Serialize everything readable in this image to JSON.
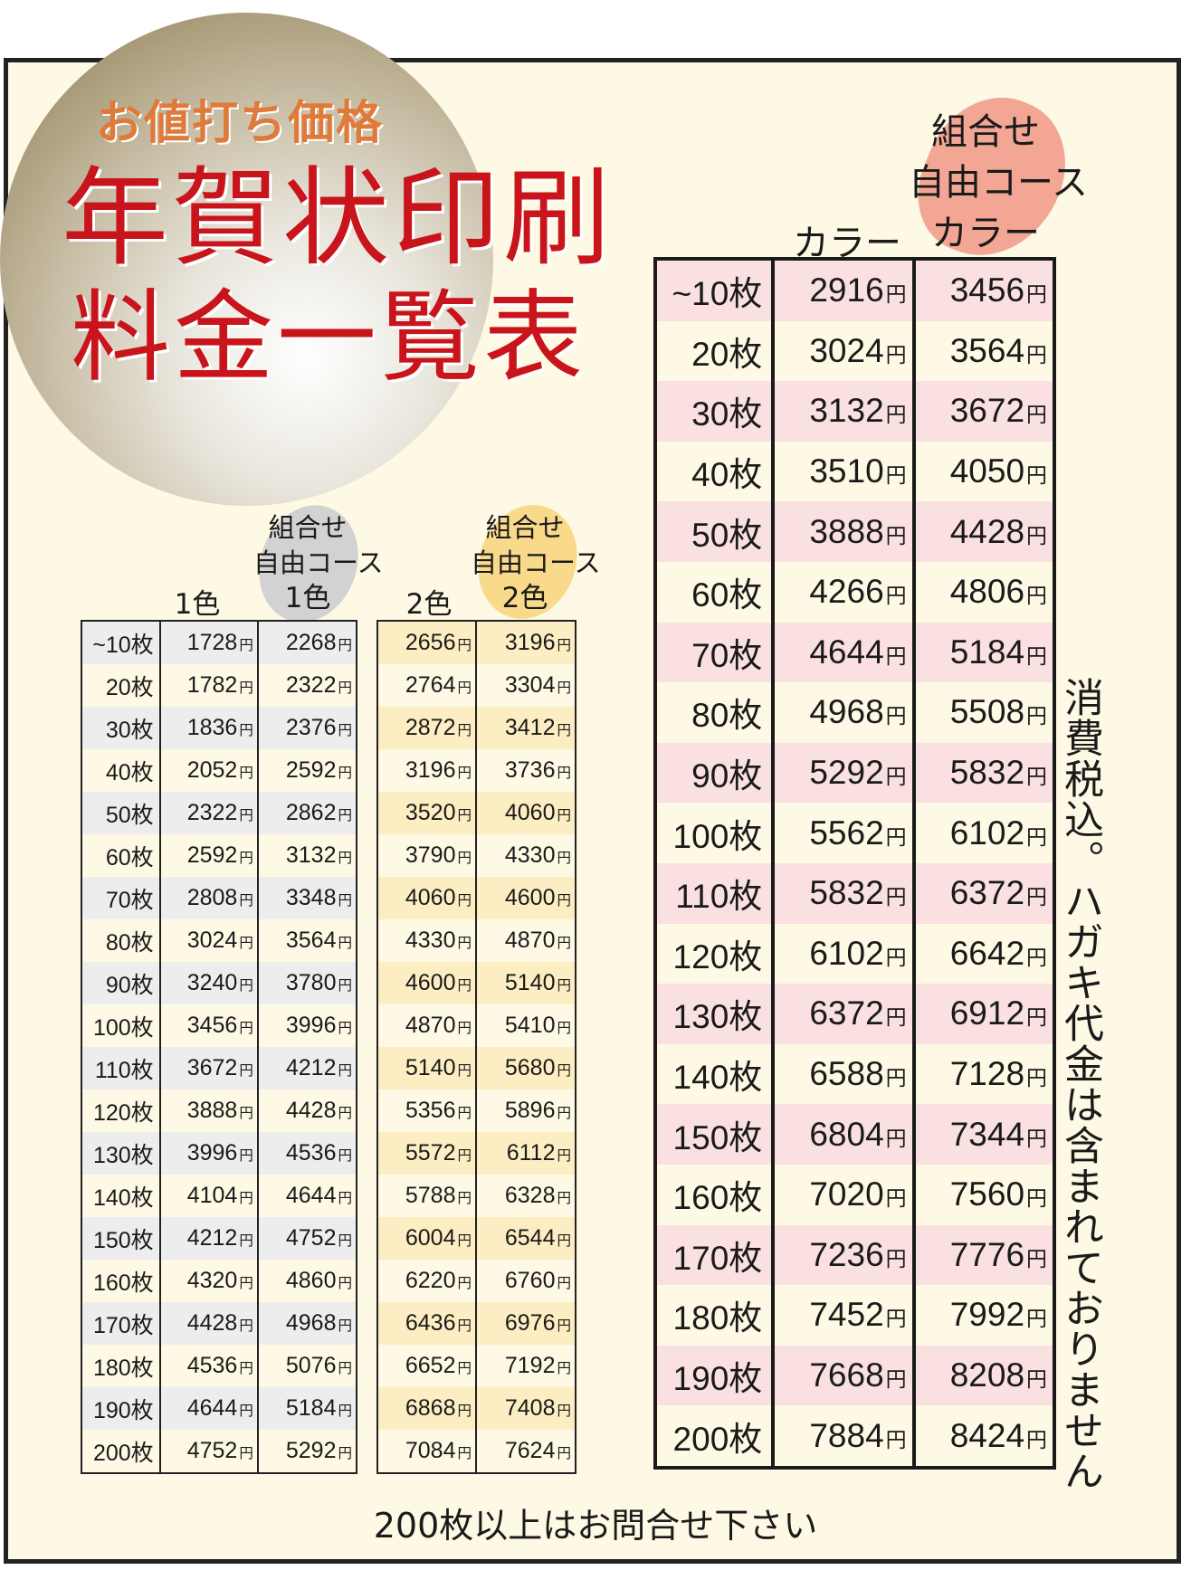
{
  "header": {
    "tagline": "お値打ち価格",
    "title_line1": "年賀状印刷",
    "title_line2": "料金一覧表"
  },
  "colors": {
    "title": "#c8141a",
    "tagline": "#e07a3a",
    "gray_blob": "#cfcfcf",
    "yellow_blob": "#f9d98a",
    "pink_blob": "#f2a693",
    "pink_row": "#fae0e0",
    "yellow_row": "#fdedc2",
    "gray_row": "#ededed"
  },
  "currency": "円",
  "monochrome": {
    "col1": "1色",
    "col2_l1": "組合せ",
    "col2_l2": "自由コース",
    "col2_l3": "1色",
    "rows": [
      {
        "label": "~10枚",
        "a": "1728",
        "b": "2268"
      },
      {
        "label": "20枚",
        "a": "1782",
        "b": "2322"
      },
      {
        "label": "30枚",
        "a": "1836",
        "b": "2376"
      },
      {
        "label": "40枚",
        "a": "2052",
        "b": "2592"
      },
      {
        "label": "50枚",
        "a": "2322",
        "b": "2862"
      },
      {
        "label": "60枚",
        "a": "2592",
        "b": "3132"
      },
      {
        "label": "70枚",
        "a": "2808",
        "b": "3348"
      },
      {
        "label": "80枚",
        "a": "3024",
        "b": "3564"
      },
      {
        "label": "90枚",
        "a": "3240",
        "b": "3780"
      },
      {
        "label": "100枚",
        "a": "3456",
        "b": "3996"
      },
      {
        "label": "110枚",
        "a": "3672",
        "b": "4212"
      },
      {
        "label": "120枚",
        "a": "3888",
        "b": "4428"
      },
      {
        "label": "130枚",
        "a": "3996",
        "b": "4536"
      },
      {
        "label": "140枚",
        "a": "4104",
        "b": "4644"
      },
      {
        "label": "150枚",
        "a": "4212",
        "b": "4752"
      },
      {
        "label": "160枚",
        "a": "4320",
        "b": "4860"
      },
      {
        "label": "170枚",
        "a": "4428",
        "b": "4968"
      },
      {
        "label": "180枚",
        "a": "4536",
        "b": "5076"
      },
      {
        "label": "190枚",
        "a": "4644",
        "b": "5184"
      },
      {
        "label": "200枚",
        "a": "4752",
        "b": "5292"
      }
    ]
  },
  "twocolor": {
    "col1": "2色",
    "col2_l1": "組合せ",
    "col2_l2": "自由コース",
    "col2_l3": "2色",
    "rows": [
      {
        "a": "2656",
        "b": "3196"
      },
      {
        "a": "2764",
        "b": "3304"
      },
      {
        "a": "2872",
        "b": "3412"
      },
      {
        "a": "3196",
        "b": "3736"
      },
      {
        "a": "3520",
        "b": "4060"
      },
      {
        "a": "3790",
        "b": "4330"
      },
      {
        "a": "4060",
        "b": "4600"
      },
      {
        "a": "4330",
        "b": "4870"
      },
      {
        "a": "4600",
        "b": "5140"
      },
      {
        "a": "4870",
        "b": "5410"
      },
      {
        "a": "5140",
        "b": "5680"
      },
      {
        "a": "5356",
        "b": "5896"
      },
      {
        "a": "5572",
        "b": "6112"
      },
      {
        "a": "5788",
        "b": "6328"
      },
      {
        "a": "6004",
        "b": "6544"
      },
      {
        "a": "6220",
        "b": "6760"
      },
      {
        "a": "6436",
        "b": "6976"
      },
      {
        "a": "6652",
        "b": "7192"
      },
      {
        "a": "6868",
        "b": "7408"
      },
      {
        "a": "7084",
        "b": "7624"
      }
    ]
  },
  "color": {
    "col1": "カラー",
    "col2_l1": "組合せ",
    "col2_l2": "自由コース",
    "col2_l3": "カラー",
    "rows": [
      {
        "label": "~10枚",
        "a": "2916",
        "b": "3456"
      },
      {
        "label": "20枚",
        "a": "3024",
        "b": "3564"
      },
      {
        "label": "30枚",
        "a": "3132",
        "b": "3672"
      },
      {
        "label": "40枚",
        "a": "3510",
        "b": "4050"
      },
      {
        "label": "50枚",
        "a": "3888",
        "b": "4428"
      },
      {
        "label": "60枚",
        "a": "4266",
        "b": "4806"
      },
      {
        "label": "70枚",
        "a": "4644",
        "b": "5184"
      },
      {
        "label": "80枚",
        "a": "4968",
        "b": "5508"
      },
      {
        "label": "90枚",
        "a": "5292",
        "b": "5832"
      },
      {
        "label": "100枚",
        "a": "5562",
        "b": "6102"
      },
      {
        "label": "110枚",
        "a": "5832",
        "b": "6372"
      },
      {
        "label": "120枚",
        "a": "6102",
        "b": "6642"
      },
      {
        "label": "130枚",
        "a": "6372",
        "b": "6912"
      },
      {
        "label": "140枚",
        "a": "6588",
        "b": "7128"
      },
      {
        "label": "150枚",
        "a": "6804",
        "b": "7344"
      },
      {
        "label": "160枚",
        "a": "7020",
        "b": "7560"
      },
      {
        "label": "170枚",
        "a": "7236",
        "b": "7776"
      },
      {
        "label": "180枚",
        "a": "7452",
        "b": "7992"
      },
      {
        "label": "190枚",
        "a": "7668",
        "b": "8208"
      },
      {
        "label": "200枚",
        "a": "7884",
        "b": "8424"
      }
    ]
  },
  "tax_note": "消費税込。ハガキ代金は含まれておりません",
  "footer": "200枚以上はお問合せ下さい"
}
